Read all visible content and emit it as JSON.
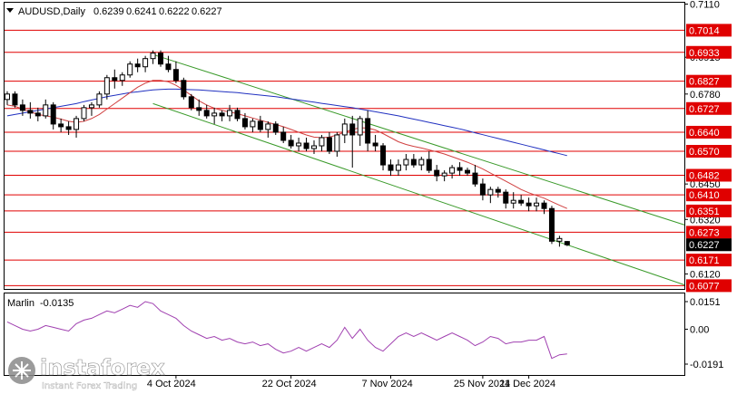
{
  "header": {
    "symbol": "AUDUSD,Daily",
    "open": "0.6239",
    "high": "0.6241",
    "low": "0.6222",
    "close": "0.6227"
  },
  "indicator": {
    "name": "Marlin",
    "value": "-0.0135",
    "axis_labels": [
      "0.0151",
      "0.00",
      "-0.0191"
    ],
    "color": "#a040b0"
  },
  "watermark": {
    "brand": "instaforex",
    "tagline": "Instant Forex Trading"
  },
  "colors": {
    "level_line": "#e00000",
    "level_label_bg": "#e00000",
    "channel": "#3a9a2a",
    "ma_fast": "#d04040",
    "ma_slow": "#2030c0",
    "candle": "#000000",
    "current_price_bg": "#000000"
  },
  "chart_data": {
    "type": "candlestick",
    "price_axis_labels": [
      "0.7110",
      "0.6915",
      "0.6780",
      "0.6450",
      "0.6320",
      "0.6120"
    ],
    "date_labels": [
      "4 Oct 2024",
      "22 Oct 2024",
      "7 Nov 2024",
      "25 Nov 2024",
      "11 Dec 2024"
    ],
    "level_labels": [
      "0.7014",
      "0.6933",
      "0.6827",
      "0.6727",
      "0.6640",
      "0.6570",
      "0.6482",
      "0.6410",
      "0.6351",
      "0.6273",
      "0.6171",
      "0.6077"
    ],
    "levels": [
      0.7014,
      0.6933,
      0.6827,
      0.6727,
      0.664,
      0.657,
      0.6482,
      0.641,
      0.6351,
      0.6273,
      0.6171,
      0.6077
    ],
    "current_price": "0.6227",
    "ylim": [
      0.6065,
      0.7115
    ],
    "candles": [
      [
        0.676,
        0.679,
        0.674,
        0.678
      ],
      [
        0.678,
        0.679,
        0.673,
        0.674
      ],
      [
        0.674,
        0.676,
        0.67,
        0.672
      ],
      [
        0.672,
        0.675,
        0.669,
        0.671
      ],
      [
        0.671,
        0.673,
        0.668,
        0.67
      ],
      [
        0.67,
        0.676,
        0.669,
        0.674
      ],
      [
        0.674,
        0.675,
        0.665,
        0.667
      ],
      [
        0.667,
        0.669,
        0.664,
        0.666
      ],
      [
        0.666,
        0.668,
        0.663,
        0.665
      ],
      [
        0.665,
        0.67,
        0.662,
        0.669
      ],
      [
        0.669,
        0.674,
        0.668,
        0.673
      ],
      [
        0.673,
        0.675,
        0.67,
        0.674
      ],
      [
        0.674,
        0.679,
        0.673,
        0.678
      ],
      [
        0.678,
        0.685,
        0.676,
        0.684
      ],
      [
        0.684,
        0.687,
        0.68,
        0.683
      ],
      [
        0.683,
        0.686,
        0.681,
        0.685
      ],
      [
        0.685,
        0.69,
        0.684,
        0.689
      ],
      [
        0.689,
        0.691,
        0.686,
        0.688
      ],
      [
        0.688,
        0.692,
        0.686,
        0.691
      ],
      [
        0.691,
        0.694,
        0.689,
        0.693
      ],
      [
        0.693,
        0.694,
        0.688,
        0.689
      ],
      [
        0.689,
        0.692,
        0.686,
        0.687
      ],
      [
        0.687,
        0.69,
        0.682,
        0.683
      ],
      [
        0.683,
        0.684,
        0.676,
        0.677
      ],
      [
        0.677,
        0.678,
        0.672,
        0.673
      ],
      [
        0.673,
        0.676,
        0.67,
        0.672
      ],
      [
        0.672,
        0.674,
        0.669,
        0.67
      ],
      [
        0.67,
        0.673,
        0.667,
        0.671
      ],
      [
        0.671,
        0.672,
        0.668,
        0.67
      ],
      [
        0.67,
        0.674,
        0.668,
        0.672
      ],
      [
        0.672,
        0.673,
        0.668,
        0.669
      ],
      [
        0.669,
        0.671,
        0.665,
        0.666
      ],
      [
        0.666,
        0.669,
        0.664,
        0.668
      ],
      [
        0.668,
        0.67,
        0.664,
        0.665
      ],
      [
        0.665,
        0.668,
        0.662,
        0.667
      ],
      [
        0.667,
        0.668,
        0.663,
        0.664
      ],
      [
        0.664,
        0.666,
        0.66,
        0.661
      ],
      [
        0.661,
        0.663,
        0.658,
        0.659
      ],
      [
        0.659,
        0.662,
        0.657,
        0.66
      ],
      [
        0.66,
        0.662,
        0.657,
        0.658
      ],
      [
        0.658,
        0.661,
        0.656,
        0.659
      ],
      [
        0.659,
        0.663,
        0.657,
        0.662
      ],
      [
        0.662,
        0.664,
        0.656,
        0.657
      ],
      [
        0.657,
        0.664,
        0.655,
        0.663
      ],
      [
        0.663,
        0.669,
        0.66,
        0.667
      ],
      [
        0.667,
        0.67,
        0.651,
        0.663
      ],
      [
        0.663,
        0.67,
        0.659,
        0.669
      ],
      [
        0.669,
        0.672,
        0.657,
        0.66
      ],
      [
        0.66,
        0.663,
        0.657,
        0.659
      ],
      [
        0.659,
        0.66,
        0.65,
        0.652
      ],
      [
        0.652,
        0.654,
        0.648,
        0.65
      ],
      [
        0.65,
        0.654,
        0.648,
        0.652
      ],
      [
        0.652,
        0.656,
        0.65,
        0.654
      ],
      [
        0.654,
        0.656,
        0.651,
        0.652
      ],
      [
        0.652,
        0.655,
        0.65,
        0.654
      ],
      [
        0.654,
        0.657,
        0.649,
        0.65
      ],
      [
        0.65,
        0.652,
        0.646,
        0.648
      ],
      [
        0.648,
        0.65,
        0.646,
        0.649
      ],
      [
        0.649,
        0.652,
        0.647,
        0.651
      ],
      [
        0.651,
        0.653,
        0.648,
        0.65
      ],
      [
        0.65,
        0.651,
        0.648,
        0.649
      ],
      [
        0.649,
        0.652,
        0.644,
        0.645
      ],
      [
        0.645,
        0.647,
        0.639,
        0.641
      ],
      [
        0.641,
        0.644,
        0.638,
        0.643
      ],
      [
        0.643,
        0.644,
        0.64,
        0.642
      ],
      [
        0.642,
        0.643,
        0.636,
        0.638
      ],
      [
        0.638,
        0.642,
        0.636,
        0.639
      ],
      [
        0.639,
        0.641,
        0.637,
        0.638
      ],
      [
        0.638,
        0.64,
        0.635,
        0.637
      ],
      [
        0.637,
        0.64,
        0.635,
        0.638
      ],
      [
        0.638,
        0.639,
        0.634,
        0.636
      ],
      [
        0.636,
        0.637,
        0.623,
        0.624
      ],
      [
        0.624,
        0.626,
        0.622,
        0.625
      ],
      [
        0.6239,
        0.6241,
        0.6222,
        0.6227
      ]
    ],
    "ma_fast": [
      0.674,
      0.6735,
      0.6725,
      0.6715,
      0.6705,
      0.67,
      0.6695,
      0.6688,
      0.668,
      0.6676,
      0.668,
      0.669,
      0.6705,
      0.6725,
      0.6745,
      0.6765,
      0.6785,
      0.6805,
      0.682,
      0.683,
      0.683,
      0.6825,
      0.6812,
      0.6795,
      0.6775,
      0.6755,
      0.674,
      0.6728,
      0.672,
      0.6714,
      0.6708,
      0.67,
      0.6692,
      0.6684,
      0.6676,
      0.6668,
      0.666,
      0.665,
      0.664,
      0.663,
      0.6622,
      0.662,
      0.6622,
      0.663,
      0.664,
      0.665,
      0.6656,
      0.6655,
      0.6648,
      0.6635,
      0.662,
      0.6605,
      0.6595,
      0.6588,
      0.6582,
      0.6575,
      0.6568,
      0.656,
      0.655,
      0.654,
      0.653,
      0.6518,
      0.6505,
      0.649,
      0.6475,
      0.646,
      0.6445,
      0.643,
      0.6418,
      0.6408,
      0.6398,
      0.6385,
      0.6372,
      0.636
    ],
    "ma_slow": [
      0.67,
      0.6705,
      0.671,
      0.6715,
      0.672,
      0.6725,
      0.673,
      0.6735,
      0.674,
      0.6745,
      0.6752,
      0.6758,
      0.6764,
      0.677,
      0.6775,
      0.678,
      0.6785,
      0.6788,
      0.6792,
      0.6795,
      0.6797,
      0.6798,
      0.6798,
      0.6797,
      0.6796,
      0.6795,
      0.6793,
      0.6791,
      0.6789,
      0.6787,
      0.6785,
      0.6782,
      0.6779,
      0.6776,
      0.6773,
      0.677,
      0.6766,
      0.6762,
      0.6758,
      0.6754,
      0.675,
      0.6746,
      0.6742,
      0.6738,
      0.6734,
      0.673,
      0.6725,
      0.672,
      0.6715,
      0.671,
      0.6705,
      0.67,
      0.6694,
      0.6688,
      0.6682,
      0.6676,
      0.667,
      0.6664,
      0.6658,
      0.6652,
      0.6645,
      0.6638,
      0.6631,
      0.6624,
      0.6617,
      0.661,
      0.6603,
      0.6596,
      0.6589,
      0.6582,
      0.6575,
      0.6568,
      0.6561,
      0.6554
    ],
    "channel_upper": [
      [
        0.6925,
        0
      ],
      [
        0.63,
        1
      ]
    ],
    "channel_lower": [
      [
        0.6745,
        0
      ],
      [
        0.608,
        1
      ]
    ],
    "marlin": [
      0.004,
      0.002,
      0.0,
      -0.001,
      0.0,
      0.002,
      0.001,
      0.0,
      -0.001,
      0.003,
      0.005,
      0.006,
      0.008,
      0.01,
      0.009,
      0.011,
      0.013,
      0.012,
      0.0151,
      0.014,
      0.01,
      0.008,
      0.006,
      0.002,
      -0.001,
      -0.003,
      -0.005,
      -0.004,
      -0.006,
      -0.005,
      -0.007,
      -0.008,
      -0.007,
      -0.009,
      -0.008,
      -0.011,
      -0.013,
      -0.012,
      -0.01,
      -0.012,
      -0.01,
      -0.008,
      -0.01,
      -0.006,
      0.001,
      -0.005,
      0.0,
      -0.006,
      -0.01,
      -0.012,
      -0.008,
      -0.004,
      -0.002,
      -0.004,
      -0.002,
      -0.004,
      -0.006,
      -0.004,
      -0.002,
      -0.004,
      -0.006,
      -0.009,
      -0.007,
      -0.004,
      -0.005,
      -0.008,
      -0.007,
      -0.007,
      -0.006,
      -0.006,
      -0.004,
      -0.016,
      -0.014,
      -0.0135
    ]
  }
}
